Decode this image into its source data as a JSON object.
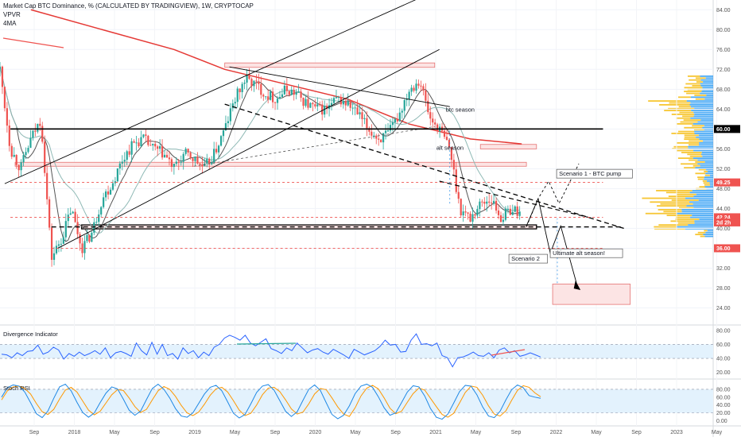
{
  "header": {
    "title": "Market Cap BTC Dominance, % (CALCULATED BY TRADINGVIEW), 1W, CRYPTOCAP",
    "line2": "VPVR",
    "line3": "4MA"
  },
  "colors": {
    "up": "#26a69a",
    "down": "#ef5350",
    "ma_red": "#e53935",
    "ma_gray": "#555555",
    "ma_teal": "#8fb9b5",
    "divergence_line": "#2962ff",
    "stoch_k": "#1e88e5",
    "stoch_d": "#ff9800",
    "band_fill": "#e3f2fd",
    "zone_fill": "#fce4e4",
    "zone_stroke": "#e57373",
    "vp_up": "#f5b800",
    "vp_down": "#2196f3",
    "support_line": "#000000",
    "dashed_red": "#ef5350"
  },
  "chart_data": [
    {
      "type": "candlestick",
      "title": "Market Cap BTC Dominance, % (CALCULATED BY TRADINGVIEW), 1W, CRYPTOCAP",
      "x_tick_labels": [
        "Sep",
        "2018",
        "May",
        "Sep",
        "2019",
        "May",
        "Sep",
        "2020",
        "May",
        "Sep",
        "2021",
        "May",
        "Sep",
        "2022",
        "May",
        "Sep",
        "2023",
        "May"
      ],
      "y_tick_labels": [
        "84.00",
        "80.00",
        "76.00",
        "72.00",
        "68.00",
        "64.00",
        "60.00",
        "56.00",
        "52.00",
        "48.00",
        "44.00",
        "40.00",
        "36.00",
        "32.00",
        "28.00",
        "24.00"
      ],
      "ylim": [
        22,
        85
      ],
      "price_markers": [
        {
          "label": "60.00",
          "value": 60.0,
          "color": "#000000"
        },
        {
          "label": "49.25",
          "value": 49.25,
          "color": "#ef5350"
        },
        {
          "label": "42.24",
          "value": 42.24,
          "color": "#ef5350"
        },
        {
          "label": "2d 2h",
          "value": 41.2,
          "color": "#ef5350"
        },
        {
          "label": "36.00",
          "value": 36.0,
          "color": "#ef5350"
        }
      ],
      "series": [
        {
          "name": "BTC dominance (weekly close)",
          "x": [
            "2017-08-01",
            "2017-09-01",
            "2017-10-01",
            "2017-11-01",
            "2017-12-01",
            "2018-01-01",
            "2018-02-01",
            "2018-03-01",
            "2018-04-01",
            "2018-05-01",
            "2018-06-01",
            "2018-07-01",
            "2018-08-01",
            "2018-09-01",
            "2018-10-01",
            "2018-11-01",
            "2018-12-01",
            "2019-01-01",
            "2019-02-01",
            "2019-03-01",
            "2019-04-01",
            "2019-05-01",
            "2019-06-01",
            "2019-07-01",
            "2019-08-01",
            "2019-09-01",
            "2019-10-01",
            "2019-11-01",
            "2019-12-01",
            "2020-01-01",
            "2020-02-01",
            "2020-03-01",
            "2020-04-01",
            "2020-05-01",
            "2020-06-01",
            "2020-07-01",
            "2020-08-01",
            "2020-09-01",
            "2020-10-01",
            "2020-11-01",
            "2020-12-01",
            "2021-01-01",
            "2021-02-01",
            "2021-03-01",
            "2021-04-01",
            "2021-05-01",
            "2021-06-01",
            "2021-07-01",
            "2021-08-01",
            "2021-09-01",
            "2021-10-01",
            "2021-11-01"
          ],
          "values": [
            72,
            56,
            52,
            58,
            62,
            34,
            38,
            44,
            36,
            39,
            46,
            49,
            54,
            57,
            58,
            56,
            55,
            52,
            55,
            54,
            52,
            55,
            60,
            66,
            70,
            69,
            67,
            66,
            68,
            67,
            65,
            64,
            64,
            66,
            65,
            63,
            60,
            58,
            59,
            63,
            68,
            70,
            62,
            60,
            56,
            44,
            42,
            45,
            46,
            42,
            44,
            43
          ]
        },
        {
          "name": "long MA (red)",
          "x": [
            "2017-11-01",
            "2018-06-01",
            "2019-01-01",
            "2019-06-01",
            "2019-12-01",
            "2020-06-01",
            "2020-12-01",
            "2021-06-01",
            "2021-11-01"
          ],
          "values": [
            84,
            80,
            76,
            72,
            69,
            66,
            61,
            58,
            57
          ]
        }
      ],
      "zones": [
        {
          "from": "2019-06-01",
          "to": "2021-02-15",
          "low": 72.4,
          "high": 73.3
        },
        {
          "from": "2017-09-15",
          "to": "2021-11-15",
          "low": 52.5,
          "high": 53.3
        },
        {
          "from": "2021-07-01",
          "to": "2021-12-15",
          "low": 56.0,
          "high": 56.9
        },
        {
          "from": "2018-04-01",
          "to": "2021-12-15",
          "low": 39.9,
          "high": 40.7
        },
        {
          "from": "2022-02-01",
          "to": "2022-09-20",
          "low": 24.7,
          "high": 28.8
        }
      ],
      "annotations": [
        "btc season",
        "alt season",
        "Scenario 1 - BTC pump",
        "Scenario 2",
        "Ultimate alt season!"
      ]
    },
    {
      "type": "line",
      "title": "Divergence Indicator",
      "y_tick_labels": [
        "80.00",
        "60.00",
        "40.00",
        "20.00"
      ],
      "ylim": [
        14,
        82
      ],
      "reference_lines": [
        60,
        40
      ],
      "series": [
        {
          "name": "Divergence Indicator",
          "values": [
            46,
            45,
            41,
            48,
            44,
            50,
            51,
            59,
            46,
            49,
            56,
            52,
            39,
            47,
            43,
            49,
            44,
            47,
            51,
            46,
            55,
            41,
            48,
            50,
            47,
            43,
            62,
            51,
            45,
            63,
            46,
            60,
            44,
            47,
            39,
            55,
            47,
            51,
            41,
            49,
            44,
            56,
            60,
            69,
            73,
            70,
            66,
            73,
            62,
            58,
            63,
            68,
            54,
            51,
            47,
            55,
            51,
            62,
            55,
            48,
            52,
            54,
            49,
            46,
            53,
            49,
            45,
            40,
            53,
            49,
            45,
            48,
            51,
            57,
            66,
            59,
            60,
            49,
            50,
            66,
            75,
            60,
            61,
            58,
            62,
            44,
            41,
            28,
            41,
            42,
            45,
            49,
            44,
            43,
            48,
            41,
            52,
            55,
            48,
            51,
            43,
            45,
            48,
            45,
            42
          ]
        }
      ],
      "divergence_segments": [
        {
          "from": "2017-08-01",
          "to": "2018-01-15",
          "kind": "bullish"
        },
        {
          "from": "2019-08-01",
          "to": "2020-01-10",
          "kind": "bearish"
        },
        {
          "from": "2021-07-15",
          "to": "2021-11-01",
          "kind": "bullish"
        }
      ]
    },
    {
      "type": "line",
      "title": "Stoch RSI",
      "y_tick_labels": [
        "80.00",
        "60.00",
        "40.00",
        "20.00",
        "0.00"
      ],
      "ylim": [
        -5,
        100
      ],
      "reference_lines": [
        80,
        20
      ],
      "series": [
        {
          "name": "K",
          "values": [
            60,
            84,
            91,
            88,
            73,
            46,
            18,
            8,
            25,
            57,
            86,
            93,
            76,
            47,
            21,
            9,
            20,
            46,
            70,
            86,
            81,
            55,
            27,
            14,
            25,
            54,
            82,
            93,
            80,
            58,
            31,
            12,
            9,
            20,
            44,
            68,
            85,
            90,
            76,
            48,
            19,
            7,
            16,
            43,
            72,
            88,
            92,
            78,
            51,
            24,
            11,
            23,
            52,
            80,
            91,
            77,
            46,
            16,
            5,
            14,
            38,
            69,
            88,
            93,
            85,
            61,
            33,
            14,
            20,
            46,
            73,
            89,
            86,
            63,
            31,
            9,
            4,
            17,
            45,
            74,
            90,
            88,
            66,
            35,
            12,
            8,
            24,
            53,
            79,
            91,
            84,
            64,
            60,
            57
          ]
        },
        {
          "name": "D",
          "values": [
            53,
            76,
            86,
            88,
            82,
            68,
            44,
            23,
            16,
            29,
            55,
            78,
            85,
            73,
            50,
            27,
            15,
            24,
            45,
            66,
            79,
            77,
            58,
            36,
            21,
            29,
            53,
            76,
            87,
            80,
            62,
            39,
            20,
            13,
            22,
            42,
            65,
            81,
            85,
            73,
            51,
            27,
            13,
            19,
            40,
            66,
            83,
            85,
            74,
            53,
            30,
            17,
            22,
            43,
            68,
            82,
            79,
            58,
            35,
            17,
            11,
            33,
            63,
            83,
            90,
            81,
            58,
            32,
            18,
            24,
            47,
            69,
            83,
            78,
            57,
            36,
            16,
            9,
            19,
            45,
            72,
            88,
            85,
            65,
            38,
            17,
            12,
            25,
            52,
            77,
            89,
            85,
            71,
            61
          ]
        }
      ]
    }
  ]
}
